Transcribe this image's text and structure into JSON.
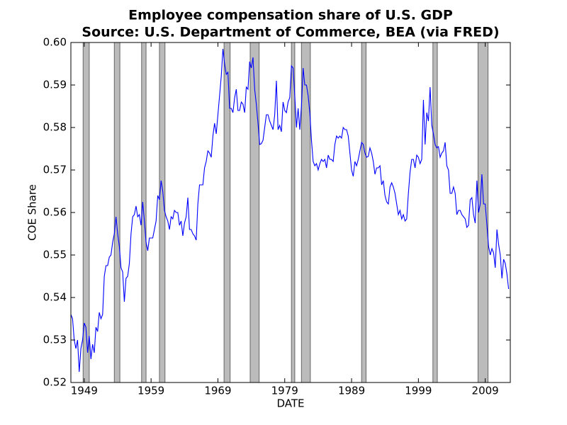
{
  "chart_data": {
    "type": "line",
    "title": "Employee compensation share of U.S. GDP",
    "subtitle": "Source: U.S. Department of Commerce, BEA (via FRED)",
    "x_label": "DATE",
    "y_label": "COE Share",
    "xlim": [
      1947,
      2012.75
    ],
    "xticks": [
      1949,
      1959,
      1969,
      1979,
      1989,
      1999,
      2009
    ],
    "ylim": [
      0.52,
      0.6
    ],
    "yticks": [
      0.52,
      0.53,
      0.54,
      0.55,
      0.56,
      0.57,
      0.58,
      0.59,
      {
        "value": 0.6,
        "label": "0.60"
      }
    ],
    "recession_color": "#bbbbbb",
    "recessions": [
      [
        1948.83,
        1949.75
      ],
      [
        1953.5,
        1954.33
      ],
      [
        1957.58,
        1958.25
      ],
      [
        1960.25,
        1961.08
      ],
      [
        1969.92,
        1970.83
      ],
      [
        1973.83,
        1975.17
      ],
      [
        1980.0,
        1980.5
      ],
      [
        1981.5,
        1982.83
      ],
      [
        1990.5,
        1991.17
      ],
      [
        2001.17,
        2001.83
      ],
      [
        2007.92,
        2009.42
      ]
    ],
    "x": [
      1947,
      1947.25,
      1947.5,
      1947.75,
      1948,
      1948.25,
      1948.5,
      1948.75,
      1949,
      1949.25,
      1949.5,
      1949.75,
      1950,
      1950.25,
      1950.5,
      1950.75,
      1951,
      1951.25,
      1951.5,
      1951.75,
      1952,
      1952.25,
      1952.5,
      1952.75,
      1953,
      1953.25,
      1953.5,
      1953.75,
      1954,
      1954.25,
      1954.5,
      1954.75,
      1955,
      1955.25,
      1955.5,
      1955.75,
      1956,
      1956.25,
      1956.5,
      1956.75,
      1957,
      1957.25,
      1957.5,
      1957.75,
      1958,
      1958.25,
      1958.5,
      1958.75,
      1959,
      1959.25,
      1959.5,
      1959.75,
      1960,
      1960.25,
      1960.5,
      1960.75,
      1961,
      1961.25,
      1961.5,
      1961.75,
      1962,
      1962.25,
      1962.5,
      1962.75,
      1963,
      1963.25,
      1963.5,
      1963.75,
      1964,
      1964.25,
      1964.5,
      1964.75,
      1965,
      1965.25,
      1965.5,
      1965.75,
      1966,
      1966.25,
      1966.5,
      1966.75,
      1967,
      1967.25,
      1967.5,
      1967.75,
      1968,
      1968.25,
      1968.5,
      1968.75,
      1969,
      1969.25,
      1969.5,
      1969.75,
      1970,
      1970.25,
      1970.5,
      1970.75,
      1971,
      1971.25,
      1971.5,
      1971.75,
      1972,
      1972.25,
      1972.5,
      1972.75,
      1973,
      1973.25,
      1973.5,
      1973.75,
      1974,
      1974.25,
      1974.5,
      1974.75,
      1975,
      1975.25,
      1975.5,
      1975.75,
      1976,
      1976.25,
      1976.5,
      1976.75,
      1977,
      1977.25,
      1977.5,
      1977.75,
      1978,
      1978.25,
      1978.5,
      1978.75,
      1979,
      1979.25,
      1979.5,
      1979.75,
      1980,
      1980.25,
      1980.5,
      1980.75,
      1981,
      1981.25,
      1981.5,
      1981.75,
      1982,
      1982.25,
      1982.5,
      1982.75,
      1983,
      1983.25,
      1983.5,
      1983.75,
      1984,
      1984.25,
      1984.5,
      1984.75,
      1985,
      1985.25,
      1985.5,
      1985.75,
      1986,
      1986.25,
      1986.5,
      1986.75,
      1987,
      1987.25,
      1987.5,
      1987.75,
      1988,
      1988.25,
      1988.5,
      1988.75,
      1989,
      1989.25,
      1989.5,
      1989.75,
      1990,
      1990.25,
      1990.5,
      1990.75,
      1991,
      1991.25,
      1991.5,
      1991.75,
      1992,
      1992.25,
      1992.5,
      1992.75,
      1993,
      1993.25,
      1993.5,
      1993.75,
      1994,
      1994.25,
      1994.5,
      1994.75,
      1995,
      1995.25,
      1995.5,
      1995.75,
      1996,
      1996.25,
      1996.5,
      1996.75,
      1997,
      1997.25,
      1997.5,
      1997.75,
      1998,
      1998.25,
      1998.5,
      1998.75,
      1999,
      1999.25,
      1999.5,
      1999.75,
      2000,
      2000.25,
      2000.5,
      2000.75,
      2001,
      2001.25,
      2001.5,
      2001.75,
      2002,
      2002.25,
      2002.5,
      2002.75,
      2003,
      2003.25,
      2003.5,
      2003.75,
      2004,
      2004.25,
      2004.5,
      2004.75,
      2005,
      2005.25,
      2005.5,
      2005.75,
      2006,
      2006.25,
      2006.5,
      2006.75,
      2007,
      2007.25,
      2007.5,
      2007.75,
      2008,
      2008.25,
      2008.5,
      2008.75,
      2009,
      2009.25,
      2009.5,
      2009.75,
      2010,
      2010.25,
      2010.5,
      2010.75,
      2011,
      2011.25,
      2011.5,
      2011.75,
      2012,
      2012.25,
      2012.5
    ],
    "series": [
      {
        "color": "#0000ff",
        "values": [
          0.536,
          0.535,
          0.53,
          0.528,
          0.53,
          0.5225,
          0.528,
          0.53,
          0.534,
          0.533,
          0.527,
          0.531,
          0.5255,
          0.529,
          0.527,
          0.533,
          0.532,
          0.5365,
          0.535,
          0.536,
          0.545,
          0.5475,
          0.5475,
          0.5495,
          0.55,
          0.553,
          0.555,
          0.559,
          0.555,
          0.552,
          0.547,
          0.546,
          0.539,
          0.5445,
          0.545,
          0.548,
          0.555,
          0.559,
          0.5595,
          0.5615,
          0.559,
          0.5595,
          0.557,
          0.5625,
          0.558,
          0.553,
          0.551,
          0.554,
          0.554,
          0.554,
          0.556,
          0.558,
          0.564,
          0.563,
          0.5675,
          0.565,
          0.5605,
          0.559,
          0.558,
          0.556,
          0.559,
          0.5585,
          0.5605,
          0.56,
          0.56,
          0.557,
          0.558,
          0.5545,
          0.5575,
          0.559,
          0.5635,
          0.556,
          0.556,
          0.555,
          0.5545,
          0.5535,
          0.562,
          0.5665,
          0.5665,
          0.5665,
          0.5705,
          0.572,
          0.5745,
          0.574,
          0.573,
          0.578,
          0.581,
          0.5785,
          0.583,
          0.5875,
          0.592,
          0.5985,
          0.595,
          0.5925,
          0.593,
          0.5845,
          0.5845,
          0.5835,
          0.587,
          0.589,
          0.584,
          0.584,
          0.586,
          0.5855,
          0.5835,
          0.5895,
          0.589,
          0.5955,
          0.594,
          0.5965,
          0.589,
          0.5855,
          0.581,
          0.576,
          0.5762,
          0.577,
          0.58,
          0.583,
          0.583,
          0.5815,
          0.5805,
          0.5795,
          0.583,
          0.591,
          0.5795,
          0.5805,
          0.579,
          0.586,
          0.584,
          0.5835,
          0.586,
          0.587,
          0.5945,
          0.594,
          0.5875,
          0.58,
          0.5845,
          0.5795,
          0.585,
          0.594,
          0.59,
          0.59,
          0.5875,
          0.5835,
          0.577,
          0.572,
          0.571,
          0.5715,
          0.57,
          0.5715,
          0.5725,
          0.572,
          0.5725,
          0.5705,
          0.5735,
          0.5725,
          0.5725,
          0.572,
          0.576,
          0.578,
          0.5775,
          0.578,
          0.5775,
          0.58,
          0.5795,
          0.5795,
          0.578,
          0.574,
          0.57,
          0.5685,
          0.572,
          0.571,
          0.5725,
          0.5745,
          0.5765,
          0.576,
          0.574,
          0.573,
          0.5732,
          0.5752,
          0.574,
          0.572,
          0.569,
          0.5705,
          0.5705,
          0.571,
          0.5665,
          0.5675,
          0.564,
          0.5625,
          0.562,
          0.566,
          0.567,
          0.566,
          0.5645,
          0.562,
          0.5595,
          0.5605,
          0.5585,
          0.5595,
          0.558,
          0.5585,
          0.5645,
          0.5695,
          0.5725,
          0.5725,
          0.5705,
          0.5735,
          0.573,
          0.5715,
          0.5725,
          0.5865,
          0.576,
          0.5835,
          0.5815,
          0.5895,
          0.5805,
          0.5785,
          0.576,
          0.5752,
          0.5755,
          0.573,
          0.574,
          0.5745,
          0.5765,
          0.571,
          0.57,
          0.5645,
          0.5645,
          0.566,
          0.5645,
          0.5595,
          0.5605,
          0.5605,
          0.5595,
          0.559,
          0.5585,
          0.5565,
          0.557,
          0.563,
          0.5635,
          0.5595,
          0.5575,
          0.5675,
          0.56,
          0.562,
          0.569,
          0.562,
          0.562,
          0.557,
          0.552,
          0.55,
          0.5515,
          0.5505,
          0.547,
          0.556,
          0.5525,
          0.55,
          0.5445,
          0.549,
          0.548,
          0.5455,
          0.542
        ]
      }
    ]
  }
}
